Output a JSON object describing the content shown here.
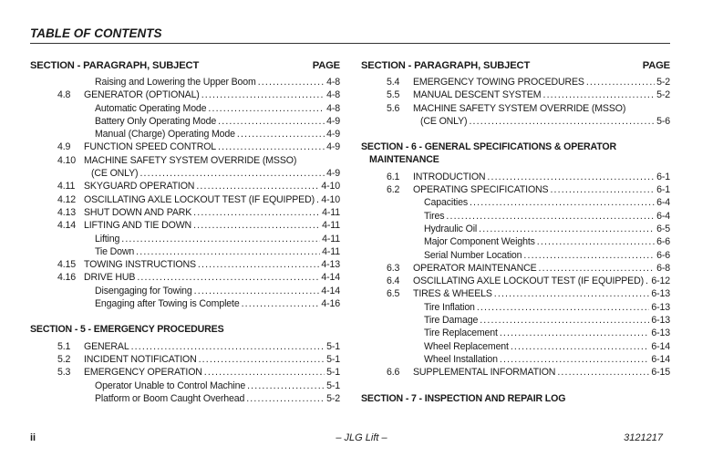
{
  "title": "TABLE OF CONTENTS",
  "footer": {
    "page": "ii",
    "center": "– JLG Lift –",
    "doc_number": "3121217"
  },
  "columns": [
    {
      "header": {
        "left": "SECTION - PARAGRAPH, SUBJECT",
        "right": "PAGE"
      },
      "items": [
        {
          "type": "entry",
          "level": 2,
          "num": "",
          "title": "Raising and Lowering the Upper Boom",
          "page": "4-8"
        },
        {
          "type": "entry",
          "level": 1,
          "num": "4.8",
          "title": "GENERATOR (OPTIONAL)",
          "page": "4-8"
        },
        {
          "type": "entry",
          "level": 2,
          "num": "",
          "title": "Automatic Operating Mode",
          "page": "4-8"
        },
        {
          "type": "entry",
          "level": 2,
          "num": "",
          "title": "Battery Only Operating Mode",
          "page": "4-9"
        },
        {
          "type": "entry",
          "level": 2,
          "num": "",
          "title": "Manual (Charge) Operating Mode",
          "page": "4-9"
        },
        {
          "type": "entry",
          "level": 1,
          "num": "4.9",
          "title": "FUNCTION SPEED CONTROL",
          "page": "4-9"
        },
        {
          "type": "entry",
          "level": 1,
          "num": "4.10",
          "title": "MACHINE SAFETY SYSTEM OVERRIDE (MSSO)",
          "page": ""
        },
        {
          "type": "entry",
          "level": 3,
          "num": "",
          "title": "(CE ONLY)",
          "page": "4-9"
        },
        {
          "type": "entry",
          "level": 1,
          "num": "4.11",
          "title": "SKYGUARD OPERATION",
          "page": "4-10"
        },
        {
          "type": "entry",
          "level": 1,
          "num": "4.12",
          "title": "OSCILLATING AXLE LOCKOUT TEST (IF EQUIPPED)",
          "page": "4-10"
        },
        {
          "type": "entry",
          "level": 1,
          "num": "4.13",
          "title": "SHUT DOWN AND PARK",
          "page": "4-11"
        },
        {
          "type": "entry",
          "level": 1,
          "num": "4.14",
          "title": "LIFTING AND TIE DOWN",
          "page": "4-11"
        },
        {
          "type": "entry",
          "level": 2,
          "num": "",
          "title": "Lifting",
          "page": "4-11"
        },
        {
          "type": "entry",
          "level": 2,
          "num": "",
          "title": "Tie Down",
          "page": "4-11"
        },
        {
          "type": "entry",
          "level": 1,
          "num": "4.15",
          "title": "TOWING INSTRUCTIONS",
          "page": "4-13"
        },
        {
          "type": "entry",
          "level": 1,
          "num": "4.16",
          "title": "DRIVE HUB",
          "page": "4-14"
        },
        {
          "type": "entry",
          "level": 2,
          "num": "",
          "title": "Disengaging for Towing",
          "page": "4-14"
        },
        {
          "type": "entry",
          "level": 2,
          "num": "",
          "title": "Engaging after Towing is Complete",
          "page": "4-16"
        },
        {
          "type": "section",
          "lines": [
            "SECTION - 5 - EMERGENCY PROCEDURES"
          ]
        },
        {
          "type": "entry",
          "level": 1,
          "num": "5.1",
          "title": "GENERAL",
          "page": "5-1"
        },
        {
          "type": "entry",
          "level": 1,
          "num": "5.2",
          "title": "INCIDENT NOTIFICATION",
          "page": "5-1"
        },
        {
          "type": "entry",
          "level": 1,
          "num": "5.3",
          "title": "EMERGENCY OPERATION",
          "page": "5-1"
        },
        {
          "type": "entry",
          "level": 2,
          "num": "",
          "title": "Operator Unable to Control Machine",
          "page": "5-1"
        },
        {
          "type": "entry",
          "level": 2,
          "num": "",
          "title": "Platform or Boom Caught Overhead",
          "page": "5-2"
        }
      ]
    },
    {
      "header": {
        "left": "SECTION - PARAGRAPH, SUBJECT",
        "right": "PAGE"
      },
      "items": [
        {
          "type": "entry",
          "level": 1,
          "num": "5.4",
          "title": "EMERGENCY TOWING PROCEDURES",
          "page": "5-2"
        },
        {
          "type": "entry",
          "level": 1,
          "num": "5.5",
          "title": "MANUAL DESCENT SYSTEM",
          "page": "5-2"
        },
        {
          "type": "entry",
          "level": 1,
          "num": "5.6",
          "title": "MACHINE SAFETY SYSTEM OVERRIDE (MSSO)",
          "page": ""
        },
        {
          "type": "entry",
          "level": 3,
          "num": "",
          "title": "(CE ONLY)",
          "page": "5-6"
        },
        {
          "type": "section",
          "lines": [
            "SECTION - 6 - GENERAL SPECIFICATIONS & OPERATOR",
            "MAINTENANCE"
          ]
        },
        {
          "type": "entry",
          "level": 1,
          "num": "6.1",
          "title": "INTRODUCTION",
          "page": "6-1"
        },
        {
          "type": "entry",
          "level": 1,
          "num": "6.2",
          "title": "OPERATING SPECIFICATIONS",
          "page": "6-1"
        },
        {
          "type": "entry",
          "level": 2,
          "num": "",
          "title": "Capacities",
          "page": "6-4"
        },
        {
          "type": "entry",
          "level": 2,
          "num": "",
          "title": "Tires",
          "page": "6-4"
        },
        {
          "type": "entry",
          "level": 2,
          "num": "",
          "title": "Hydraulic Oil",
          "page": "6-5"
        },
        {
          "type": "entry",
          "level": 2,
          "num": "",
          "title": "Major Component Weights",
          "page": "6-6"
        },
        {
          "type": "entry",
          "level": 2,
          "num": "",
          "title": "Serial Number Location",
          "page": "6-6"
        },
        {
          "type": "entry",
          "level": 1,
          "num": "6.3",
          "title": "OPERATOR MAINTENANCE",
          "page": "6-8"
        },
        {
          "type": "entry",
          "level": 1,
          "num": "6.4",
          "title": "OSCILLATING AXLE LOCKOUT TEST (IF EQUIPPED)",
          "page": "6-12"
        },
        {
          "type": "entry",
          "level": 1,
          "num": "6.5",
          "title": "TIRES & WHEELS",
          "page": "6-13"
        },
        {
          "type": "entry",
          "level": 2,
          "num": "",
          "title": "Tire Inflation",
          "page": "6-13"
        },
        {
          "type": "entry",
          "level": 2,
          "num": "",
          "title": "Tire Damage",
          "page": "6-13"
        },
        {
          "type": "entry",
          "level": 2,
          "num": "",
          "title": "Tire Replacement",
          "page": "6-13"
        },
        {
          "type": "entry",
          "level": 2,
          "num": "",
          "title": "Wheel Replacement",
          "page": "6-14"
        },
        {
          "type": "entry",
          "level": 2,
          "num": "",
          "title": "Wheel Installation",
          "page": "6-14"
        },
        {
          "type": "entry",
          "level": 1,
          "num": "6.6",
          "title": "SUPPLEMENTAL INFORMATION",
          "page": "6-15"
        },
        {
          "type": "section",
          "lines": [
            "SECTION - 7 - INSPECTION AND REPAIR LOG"
          ]
        }
      ]
    }
  ]
}
